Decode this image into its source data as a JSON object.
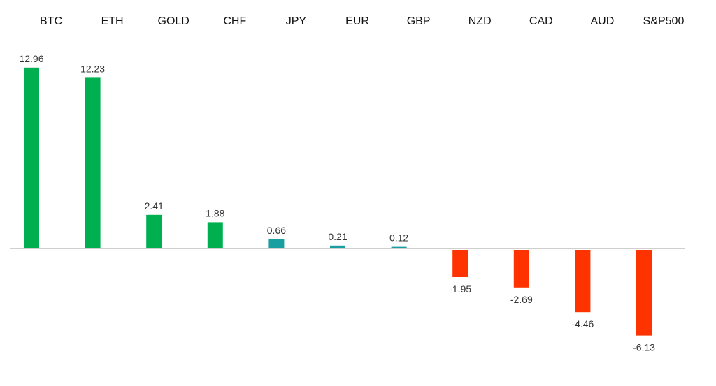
{
  "chart_data": {
    "type": "bar",
    "title": "",
    "xlabel": "",
    "ylabel": "",
    "categories": [
      "BTC",
      "ETH",
      "GOLD",
      "CHF",
      "JPY",
      "EUR",
      "GBP",
      "NZD",
      "CAD",
      "AUD",
      "S&P500"
    ],
    "values": [
      12.96,
      12.23,
      2.41,
      1.88,
      0.66,
      0.21,
      0.12,
      -1.95,
      -2.69,
      -4.46,
      -6.13
    ],
    "value_labels": [
      "12.96",
      "12.23",
      "2.41",
      "1.88",
      "0.66",
      "0.21",
      "0.12",
      "-1.95",
      "-2.69",
      "-4.46",
      "-6.13"
    ],
    "ylim": [
      -6.5,
      13.5
    ],
    "grid": false,
    "legend": "none",
    "category_axis_position": "top",
    "colors": {
      "positive_large": "#00b050",
      "positive_small": "#1a9fa0",
      "negative": "#ff3300",
      "axis": "#bfbfbf"
    }
  }
}
